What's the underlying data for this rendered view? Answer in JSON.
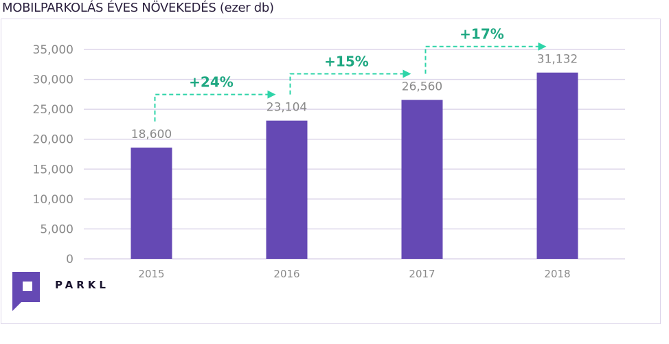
{
  "chart_data": {
    "type": "bar",
    "title": "MOBILPARKOLÁS ÉVES NÖVEKEDÉS (ezer db)",
    "categories": [
      "2015",
      "2016",
      "2017",
      "2018"
    ],
    "values": [
      18600,
      23104,
      26560,
      31132
    ],
    "value_labels": [
      "18,600",
      "23,104",
      "26,560",
      "31,132"
    ],
    "ylim": [
      0,
      35000
    ],
    "yticks": [
      0,
      5000,
      10000,
      15000,
      20000,
      25000,
      30000,
      35000
    ],
    "ytick_labels": [
      "0",
      "5,000",
      "10,000",
      "15,000",
      "20,000",
      "25,000",
      "30,000",
      "35,000"
    ],
    "xlabel": "",
    "ylabel": "",
    "grid": true,
    "annotations": [
      {
        "text": "+24%",
        "from": "2015",
        "to": "2016"
      },
      {
        "text": "+15%",
        "from": "2016",
        "to": "2017"
      },
      {
        "text": "+17%",
        "from": "2017",
        "to": "2018"
      }
    ],
    "colors": {
      "bar": "#6549b4",
      "grid": "#ddd6ea",
      "annotation": "#2ed4a8",
      "annotation_text": "#1fa882",
      "tick_text": "#8a8a8a"
    }
  },
  "brand": {
    "name": "PARKL",
    "color": "#6549b4"
  }
}
